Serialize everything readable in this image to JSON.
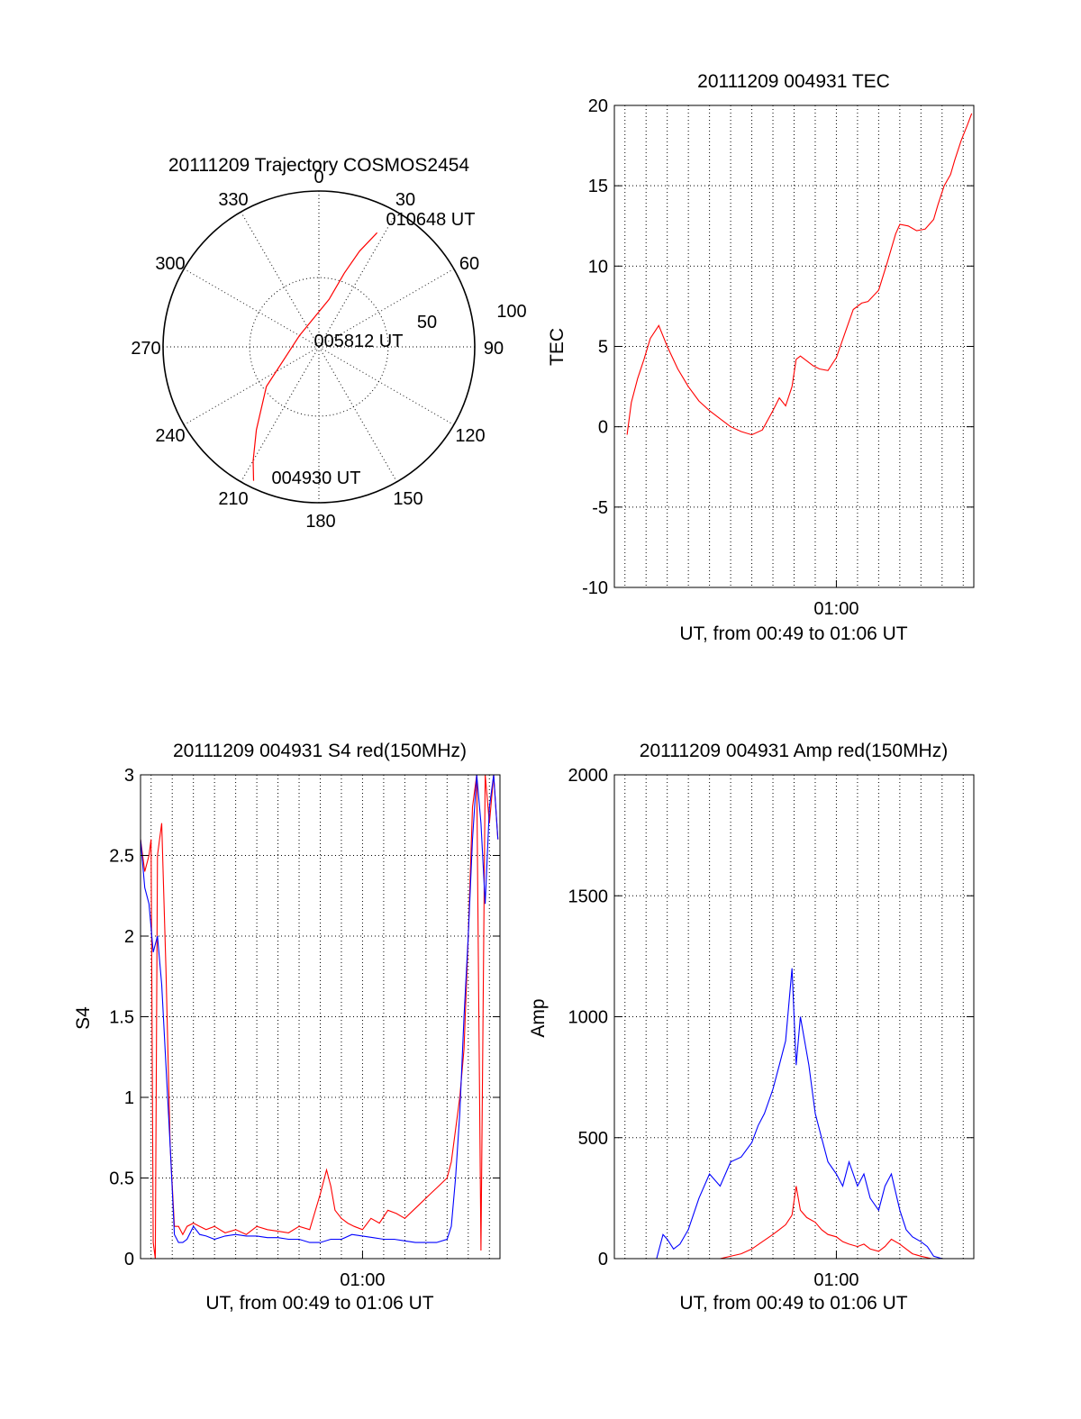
{
  "chart_data": [
    {
      "type": "polar",
      "title": "20111209 Trajectory COSMOS2454",
      "angle_labels": [
        "0",
        "30",
        "60",
        "90",
        "120",
        "150",
        "180",
        "210",
        "240",
        "270",
        "300",
        "330"
      ],
      "radial_labels": [
        "50",
        "100"
      ],
      "series": [
        {
          "color": "#ff0000",
          "points": [
            {
              "az": 206,
              "el": 4
            },
            {
              "az": 210,
              "el": 14
            },
            {
              "az": 217,
              "el": 30
            },
            {
              "az": 233,
              "el": 52
            },
            {
              "az": 300,
              "el": 77
            },
            {
              "az": 12,
              "el": 62
            },
            {
              "az": 19,
              "el": 45
            },
            {
              "az": 23,
              "el": 30
            },
            {
              "az": 27,
              "el": 16
            }
          ]
        }
      ],
      "annotations": [
        "010648 UT",
        "005812 UT",
        "004930 UT"
      ],
      "colors": {
        "track": "#ff0000"
      }
    },
    {
      "type": "line",
      "title": "20111209 004931 TEC",
      "xlabel": "UT, from 00:49 to 01:06 UT",
      "ylabel": "TEC",
      "xlim": [
        49.5,
        66.5
      ],
      "ylim": [
        -10,
        20
      ],
      "x_ticks": [
        {
          "x": 60,
          "label": "01:00"
        }
      ],
      "y_ticks": [
        "20",
        "15",
        "10",
        "5",
        "0",
        "-5",
        "-10"
      ],
      "y_tick_values": [
        20,
        15,
        10,
        5,
        0,
        -5,
        -10
      ],
      "series": [
        {
          "color": "#ff0000",
          "x": [
            50.1,
            50.3,
            50.6,
            50.9,
            51.2,
            51.6,
            52.0,
            52.5,
            53.0,
            53.5,
            54.0,
            54.5,
            55.0,
            55.5,
            56.0,
            56.5,
            57.0,
            57.3,
            57.6,
            57.9,
            58.1,
            58.3,
            58.6,
            58.9,
            59.2,
            59.6,
            60.0,
            60.4,
            60.8,
            61.2,
            61.5,
            62.0,
            62.4,
            62.8,
            63.0,
            63.4,
            63.8,
            64.2,
            64.6,
            64.8,
            65.1,
            65.4,
            65.6,
            65.9,
            66.2,
            66.4
          ],
          "y": [
            -0.5,
            1.5,
            3.0,
            4.2,
            5.5,
            6.3,
            5.0,
            3.6,
            2.5,
            1.6,
            1.0,
            0.5,
            0.0,
            -0.3,
            -0.5,
            -0.2,
            1.0,
            1.8,
            1.3,
            2.5,
            4.2,
            4.4,
            4.1,
            3.8,
            3.6,
            3.5,
            4.3,
            5.8,
            7.3,
            7.7,
            7.8,
            8.5,
            10.2,
            12.0,
            12.6,
            12.5,
            12.2,
            12.3,
            12.9,
            13.8,
            15.0,
            15.7,
            16.6,
            17.8,
            18.8,
            19.5
          ]
        }
      ]
    },
    {
      "type": "line",
      "title": "20111209 004931 S4 red(150MHz)",
      "xlabel": "UT, from 00:49 to 01:06 UT",
      "ylabel": "S4",
      "xlim": [
        49.5,
        66.5
      ],
      "ylim": [
        0,
        3
      ],
      "x_ticks": [
        {
          "x": 60,
          "label": "01:00"
        }
      ],
      "y_ticks": [
        "3",
        "2.5",
        "2",
        "1.5",
        "1",
        "0.5",
        "0"
      ],
      "y_tick_values": [
        3,
        2.5,
        2,
        1.5,
        1,
        0.5,
        0
      ],
      "series": [
        {
          "color": "#ff0000",
          "x": [
            49.5,
            49.7,
            49.9,
            50.0,
            50.1,
            50.2,
            50.3,
            50.5,
            50.7,
            50.9,
            51.1,
            51.3,
            51.5,
            51.7,
            52.0,
            52.3,
            52.6,
            53.0,
            53.5,
            54.0,
            54.5,
            55.0,
            55.5,
            56.0,
            56.5,
            57.0,
            57.5,
            58.0,
            58.3,
            58.5,
            58.7,
            59.0,
            59.3,
            59.6,
            60.0,
            60.4,
            60.8,
            61.2,
            61.6,
            62.0,
            62.4,
            62.8,
            63.2,
            63.6,
            64.0,
            64.2,
            64.4,
            64.6,
            64.8,
            65.0,
            65.2,
            65.4,
            65.6,
            65.8,
            66.0,
            66.2,
            66.4
          ],
          "y": [
            2.6,
            2.4,
            2.5,
            2.6,
            0.1,
            0.0,
            2.5,
            2.7,
            1.8,
            0.7,
            0.2,
            0.2,
            0.15,
            0.2,
            0.22,
            0.2,
            0.18,
            0.2,
            0.16,
            0.18,
            0.15,
            0.2,
            0.18,
            0.17,
            0.16,
            0.2,
            0.18,
            0.4,
            0.55,
            0.45,
            0.3,
            0.25,
            0.22,
            0.2,
            0.18,
            0.25,
            0.22,
            0.3,
            0.28,
            0.25,
            0.3,
            0.35,
            0.4,
            0.45,
            0.5,
            0.6,
            0.8,
            1.0,
            1.3,
            2.0,
            2.8,
            3.0,
            0.05,
            3.0,
            2.7,
            3.0,
            2.6
          ]
        },
        {
          "color": "#0000ff",
          "x": [
            49.5,
            49.7,
            49.9,
            50.1,
            50.3,
            50.5,
            50.7,
            50.9,
            51.1,
            51.3,
            51.5,
            51.7,
            52.0,
            52.3,
            52.6,
            53.0,
            53.5,
            54.0,
            54.5,
            55.0,
            55.5,
            56.0,
            56.5,
            57.0,
            57.5,
            58.0,
            58.5,
            59.0,
            59.5,
            60.0,
            60.5,
            61.0,
            61.5,
            62.0,
            62.5,
            63.0,
            63.5,
            64.0,
            64.2,
            64.4,
            64.6,
            64.8,
            65.0,
            65.2,
            65.4,
            65.6,
            65.8,
            66.0,
            66.2,
            66.4
          ],
          "y": [
            2.6,
            2.3,
            2.2,
            1.9,
            2.0,
            1.7,
            1.2,
            0.7,
            0.15,
            0.1,
            0.1,
            0.12,
            0.2,
            0.15,
            0.14,
            0.12,
            0.14,
            0.15,
            0.14,
            0.14,
            0.13,
            0.13,
            0.12,
            0.12,
            0.1,
            0.1,
            0.12,
            0.12,
            0.15,
            0.14,
            0.13,
            0.12,
            0.12,
            0.11,
            0.1,
            0.1,
            0.1,
            0.12,
            0.2,
            0.5,
            0.9,
            1.5,
            2.0,
            2.6,
            3.0,
            2.7,
            2.2,
            2.8,
            3.0,
            2.6
          ]
        }
      ],
      "colors": {
        "red": "#ff0000",
        "blue": "#0000ff"
      }
    },
    {
      "type": "line",
      "title": "20111209 004931 Amp red(150MHz)",
      "xlabel": "UT, from 00:49 to 01:06 UT",
      "ylabel": "Amp",
      "xlim": [
        49.5,
        66.5
      ],
      "ylim": [
        0,
        2000
      ],
      "x_ticks": [
        {
          "x": 60,
          "label": "01:00"
        }
      ],
      "y_ticks": [
        "2000",
        "1500",
        "1000",
        "500",
        "0"
      ],
      "y_tick_values": [
        2000,
        1500,
        1000,
        500,
        0
      ],
      "series": [
        {
          "color": "#0000ff",
          "x": [
            49.5,
            50.5,
            51.5,
            51.8,
            52.0,
            52.3,
            52.6,
            53.0,
            53.5,
            54.0,
            54.5,
            55.0,
            55.5,
            56.0,
            56.3,
            56.6,
            57.0,
            57.3,
            57.6,
            57.9,
            58.1,
            58.3,
            58.5,
            58.7,
            59.0,
            59.3,
            59.6,
            60.0,
            60.3,
            60.6,
            61.0,
            61.3,
            61.6,
            62.0,
            62.3,
            62.6,
            63.0,
            63.3,
            63.6,
            64.0,
            64.3,
            64.6,
            65.0,
            66.5
          ],
          "y": [
            0,
            0,
            0,
            100,
            80,
            40,
            60,
            120,
            250,
            350,
            300,
            400,
            420,
            480,
            550,
            600,
            700,
            800,
            900,
            1200,
            800,
            1000,
            900,
            800,
            600,
            500,
            400,
            350,
            300,
            400,
            300,
            350,
            250,
            200,
            300,
            350,
            200,
            120,
            90,
            70,
            50,
            10,
            0,
            0
          ]
        },
        {
          "color": "#ff0000",
          "x": [
            49.5,
            51.5,
            53.0,
            54.5,
            55.5,
            56.0,
            56.5,
            57.0,
            57.3,
            57.6,
            57.9,
            58.1,
            58.3,
            58.6,
            59.0,
            59.3,
            59.6,
            60.0,
            60.3,
            60.6,
            61.0,
            61.3,
            61.6,
            62.0,
            62.3,
            62.6,
            63.0,
            63.3,
            63.6,
            64.0,
            64.5,
            66.5
          ],
          "y": [
            0,
            0,
            0,
            0,
            20,
            40,
            70,
            100,
            120,
            140,
            180,
            300,
            200,
            170,
            150,
            120,
            100,
            90,
            70,
            60,
            50,
            60,
            40,
            30,
            50,
            80,
            60,
            40,
            20,
            10,
            0,
            0
          ]
        }
      ],
      "colors": {
        "red": "#ff0000",
        "blue": "#0000ff"
      }
    }
  ]
}
